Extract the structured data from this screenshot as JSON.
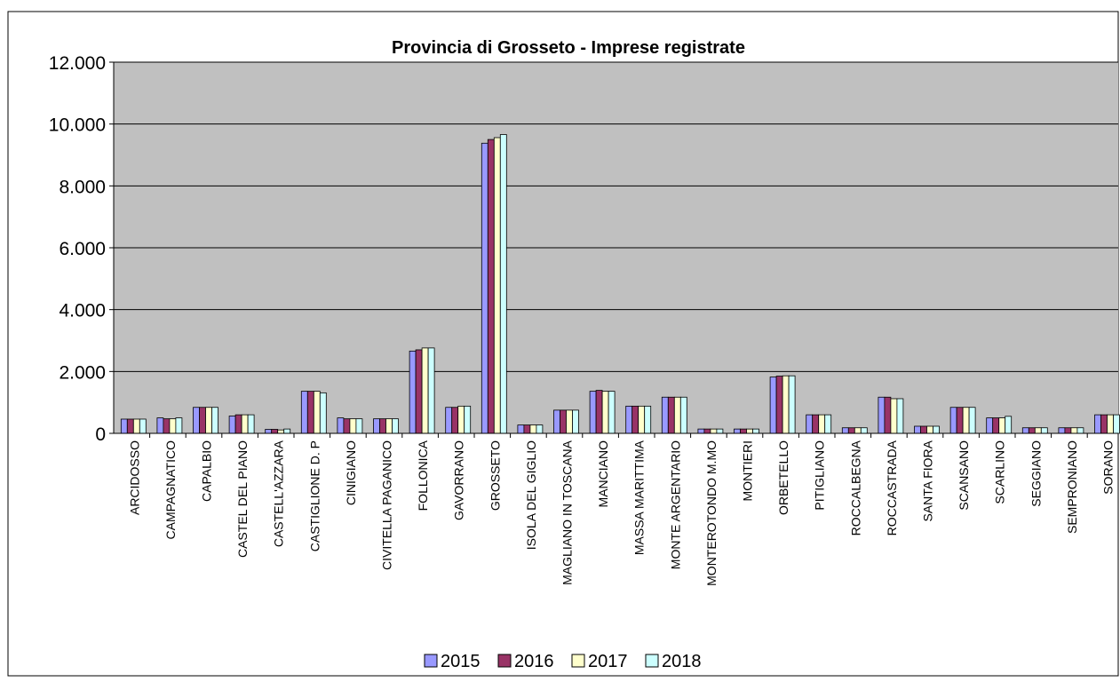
{
  "chart_data": {
    "type": "bar",
    "title": "Provincia di Grosseto - Imprese registrate",
    "xlabel": "",
    "ylabel": "",
    "ylim": [
      0,
      12000
    ],
    "yticks": [
      0,
      2000,
      4000,
      6000,
      8000,
      10000,
      12000
    ],
    "ytick_labels": [
      "0",
      "2.000",
      "4.000",
      "6.000",
      "8.000",
      "10.000",
      "12.000"
    ],
    "grid": true,
    "legend_position": "bottom",
    "categories": [
      "ARCIDOSSO",
      "CAMPAGNATICO",
      "CAPALBIO",
      "CASTEL DEL PIANO",
      "CASTELL'AZZARA",
      "CASTIGLIONE D. P",
      "CINIGIANO",
      "CIVITELLA PAGANICO",
      "FOLLONICA",
      "GAVORRANO",
      "GROSSETO",
      "ISOLA DEL GIGLIO",
      "MAGLIANO IN TOSCANA",
      "MANCIANO",
      "MASSA MARITTIMA",
      "MONTE ARGENTARIO",
      "MONTEROTONDO M.MO",
      "MONTIERI",
      "ORBETELLO",
      "PITIGLIANO",
      "ROCCALBEGNA",
      "ROCCASTRADA",
      "SANTA FIORA",
      "SCANSANO",
      "SCARLINO",
      "SEGGIANO",
      "SEMPRONIANO",
      "SORANO"
    ],
    "series": [
      {
        "name": "2015",
        "color": "#9999ff",
        "values": [
          460,
          500,
          840,
          560,
          130,
          1360,
          500,
          470,
          2660,
          840,
          9380,
          270,
          750,
          1360,
          880,
          1170,
          140,
          140,
          1820,
          600,
          180,
          1170,
          230,
          840,
          500,
          180,
          180,
          600
        ]
      },
      {
        "name": "2016",
        "color": "#993366",
        "values": [
          460,
          470,
          840,
          600,
          130,
          1360,
          470,
          470,
          2700,
          840,
          9500,
          270,
          750,
          1390,
          880,
          1170,
          140,
          140,
          1850,
          600,
          180,
          1170,
          230,
          840,
          500,
          180,
          180,
          600
        ]
      },
      {
        "name": "2017",
        "color": "#ffffcc",
        "values": [
          460,
          470,
          840,
          600,
          110,
          1360,
          470,
          470,
          2760,
          880,
          9560,
          270,
          750,
          1360,
          880,
          1170,
          140,
          140,
          1860,
          600,
          180,
          1120,
          230,
          840,
          500,
          180,
          180,
          600
        ]
      },
      {
        "name": "2018",
        "color": "#ccffff",
        "values": [
          460,
          500,
          840,
          600,
          140,
          1310,
          470,
          470,
          2760,
          880,
          9660,
          270,
          750,
          1360,
          880,
          1170,
          140,
          140,
          1860,
          600,
          180,
          1120,
          230,
          840,
          550,
          180,
          180,
          600
        ]
      }
    ],
    "colors": {
      "plot_background": "#c0c0c0",
      "gridline": "#000000",
      "bar_border": "#000000"
    }
  }
}
